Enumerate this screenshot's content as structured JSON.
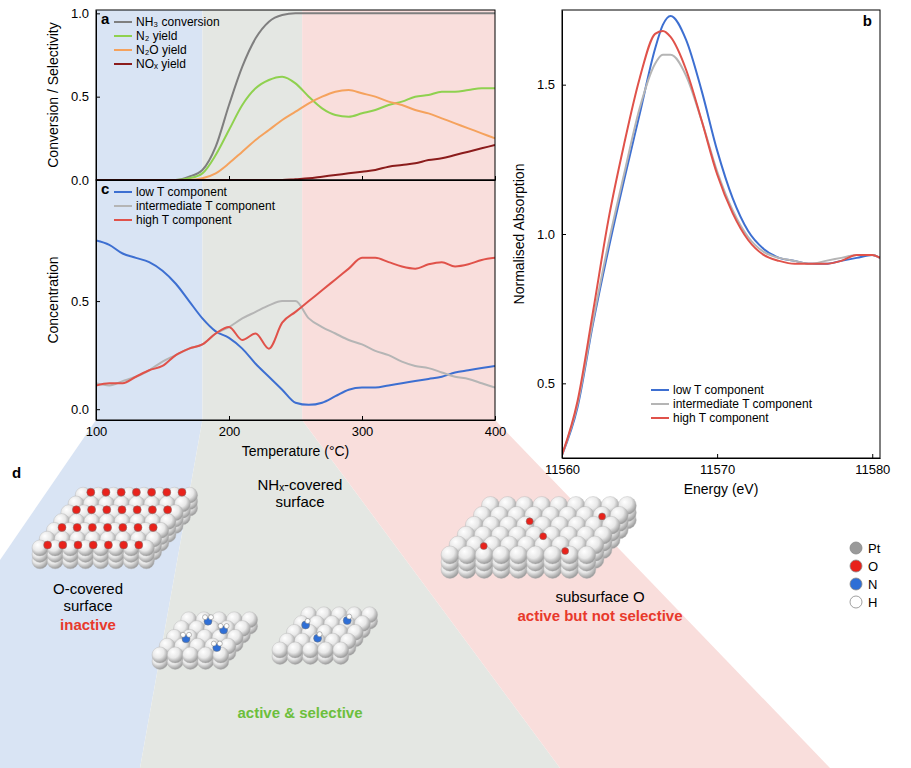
{
  "chart_data": [
    {
      "panel": "a",
      "type": "line",
      "x": [
        100,
        110,
        120,
        130,
        140,
        150,
        160,
        170,
        180,
        190,
        200,
        210,
        220,
        230,
        240,
        250,
        260,
        270,
        280,
        290,
        300,
        310,
        320,
        330,
        340,
        350,
        360,
        370,
        380,
        390,
        400
      ],
      "xlim": [
        100,
        400
      ],
      "xticks": [
        100,
        200,
        300,
        400
      ],
      "ylim": [
        0,
        1.02
      ],
      "yticks": [
        {
          "value": 0,
          "label": "0.0"
        },
        {
          "value": 0.5,
          "label": "0.5"
        },
        {
          "value": 1,
          "label": "1.0"
        }
      ],
      "y_label": "Conversion / Selectivity",
      "tick_labels": "y",
      "legend": "upper left",
      "series": [
        {
          "name": "NH₃ conversion",
          "color": "#7f7f7f",
          "values": [
            0,
            0,
            0,
            0,
            0,
            0,
            0,
            0.02,
            0.06,
            0.2,
            0.45,
            0.68,
            0.85,
            0.95,
            0.99,
            1,
            1,
            1,
            1,
            1,
            1,
            1,
            1,
            1,
            1,
            1,
            1,
            1,
            1,
            1,
            1
          ]
        },
        {
          "name": "N₂ yield",
          "color": "#8fd14f",
          "values": [
            0,
            0,
            0,
            0,
            0,
            0,
            0,
            0.01,
            0.04,
            0.15,
            0.3,
            0.45,
            0.55,
            0.6,
            0.62,
            0.58,
            0.5,
            0.43,
            0.39,
            0.38,
            0.4,
            0.42,
            0.45,
            0.47,
            0.5,
            0.51,
            0.53,
            0.53,
            0.54,
            0.55,
            0.55
          ]
        },
        {
          "name": "N₂O yield",
          "color": "#f5a25d",
          "values": [
            0,
            0,
            0,
            0,
            0,
            0,
            0,
            0,
            0.01,
            0.04,
            0.1,
            0.17,
            0.24,
            0.3,
            0.36,
            0.41,
            0.46,
            0.5,
            0.53,
            0.54,
            0.52,
            0.5,
            0.47,
            0.45,
            0.42,
            0.4,
            0.37,
            0.34,
            0.31,
            0.28,
            0.25
          ]
        },
        {
          "name": "NOₓ yield",
          "color": "#8b1c1c",
          "values": [
            0,
            0,
            0,
            0,
            0,
            0,
            0,
            0,
            0,
            0,
            0,
            0,
            0,
            0,
            0,
            0.005,
            0.01,
            0.02,
            0.03,
            0.04,
            0.05,
            0.06,
            0.08,
            0.09,
            0.1,
            0.12,
            0.13,
            0.15,
            0.17,
            0.19,
            0.21
          ]
        }
      ]
    },
    {
      "panel": "b",
      "type": "line",
      "x": [
        11560,
        11561,
        11562,
        11563,
        11564,
        11565,
        11566,
        11566.5,
        11567,
        11568,
        11569,
        11570,
        11571,
        11572,
        11573,
        11574,
        11575,
        11576,
        11577,
        11578,
        11579,
        11580,
        11580.5
      ],
      "xlim": [
        11560,
        11580.5
      ],
      "xticks": [
        11560,
        11570,
        11580
      ],
      "ylim": [
        0.25,
        1.75
      ],
      "yticks": [
        0.5,
        {
          "value": 1,
          "label": "1.0"
        },
        1.5
      ],
      "x_label": "Energy (eV)",
      "y_label": "Normalised Absorption",
      "legend": "lower center",
      "series": [
        {
          "name": "low T component",
          "color": "#3d6fd1",
          "values": [
            0.26,
            0.42,
            0.7,
            0.95,
            1.18,
            1.4,
            1.62,
            1.7,
            1.73,
            1.65,
            1.48,
            1.28,
            1.12,
            1.01,
            0.95,
            0.92,
            0.91,
            0.9,
            0.9,
            0.91,
            0.92,
            0.93,
            0.92
          ]
        },
        {
          "name": "intermediate T component",
          "color": "#b5b5b5",
          "values": [
            0.26,
            0.43,
            0.71,
            0.97,
            1.2,
            1.42,
            1.57,
            1.6,
            1.6,
            1.53,
            1.38,
            1.21,
            1.08,
            0.99,
            0.94,
            0.92,
            0.91,
            0.9,
            0.91,
            0.92,
            0.93,
            0.93,
            0.92
          ]
        },
        {
          "name": "high T component",
          "color": "#e0524a",
          "values": [
            0.26,
            0.44,
            0.74,
            1.05,
            1.3,
            1.52,
            1.67,
            1.68,
            1.66,
            1.55,
            1.38,
            1.2,
            1.07,
            0.98,
            0.93,
            0.91,
            0.9,
            0.9,
            0.9,
            0.91,
            0.93,
            0.93,
            0.92
          ]
        }
      ]
    },
    {
      "panel": "c",
      "type": "line",
      "x": [
        100,
        110,
        120,
        130,
        140,
        150,
        160,
        170,
        180,
        190,
        200,
        210,
        220,
        230,
        240,
        250,
        260,
        270,
        280,
        290,
        300,
        310,
        320,
        330,
        340,
        350,
        360,
        370,
        380,
        390,
        400
      ],
      "xlim": [
        100,
        400
      ],
      "xticks": [
        100,
        200,
        300,
        400
      ],
      "ylim": [
        -0.05,
        1.06
      ],
      "yticks": [
        {
          "value": 0,
          "label": "0.0"
        },
        0.5
      ],
      "x_label": "Temperature (°C)",
      "y_label": "Concentration",
      "legend": "upper left",
      "series": [
        {
          "name": "low T component",
          "color": "#3d6fd1",
          "values": [
            0.78,
            0.76,
            0.72,
            0.7,
            0.68,
            0.64,
            0.58,
            0.5,
            0.42,
            0.36,
            0.33,
            0.28,
            0.21,
            0.15,
            0.09,
            0.03,
            0.02,
            0.03,
            0.06,
            0.09,
            0.1,
            0.1,
            0.11,
            0.12,
            0.13,
            0.14,
            0.15,
            0.17,
            0.18,
            0.19,
            0.2
          ]
        },
        {
          "name": "intermediate T component",
          "color": "#b5b5b5",
          "values": [
            0.12,
            0.11,
            0.13,
            0.15,
            0.18,
            0.22,
            0.25,
            0.28,
            0.3,
            0.35,
            0.38,
            0.42,
            0.45,
            0.48,
            0.5,
            0.5,
            0.42,
            0.38,
            0.35,
            0.32,
            0.3,
            0.27,
            0.25,
            0.22,
            0.2,
            0.19,
            0.17,
            0.15,
            0.14,
            0.12,
            0.1
          ]
        },
        {
          "name": "high T component",
          "color": "#e0524a",
          "values": [
            0.11,
            0.12,
            0.12,
            0.15,
            0.18,
            0.2,
            0.25,
            0.28,
            0.3,
            0.35,
            0.38,
            0.32,
            0.35,
            0.28,
            0.4,
            0.45,
            0.5,
            0.55,
            0.6,
            0.65,
            0.7,
            0.7,
            0.68,
            0.66,
            0.65,
            0.67,
            0.68,
            0.66,
            0.67,
            0.69,
            0.7
          ]
        }
      ]
    }
  ],
  "diagram": {
    "panel": "d",
    "regions": [
      {
        "from": 100,
        "to": 180,
        "color": "#d9e4f4"
      },
      {
        "from": 180,
        "to": 255,
        "color": "#e4e7e3"
      },
      {
        "from": 255,
        "to": 400,
        "color": "#f9dedc"
      }
    ],
    "states": [
      {
        "label": "O-covered surface",
        "verdict": {
          "text": "inactive",
          "color": "#e8392b"
        }
      },
      {
        "label": "NHₓ-covered surface",
        "verdict": {
          "text": "active & selective",
          "color": "#6cbf3c"
        }
      },
      {
        "label": "subsurface O",
        "verdict": {
          "text": "active but not selective",
          "color": "#e8392b"
        }
      }
    ],
    "legend": [
      {
        "name": "Pt",
        "color": "#9a9a9a"
      },
      {
        "name": "O",
        "color": "#e8221b"
      },
      {
        "name": "N",
        "color": "#2f6fd6"
      },
      {
        "name": "H",
        "color": "#ffffff"
      }
    ]
  }
}
